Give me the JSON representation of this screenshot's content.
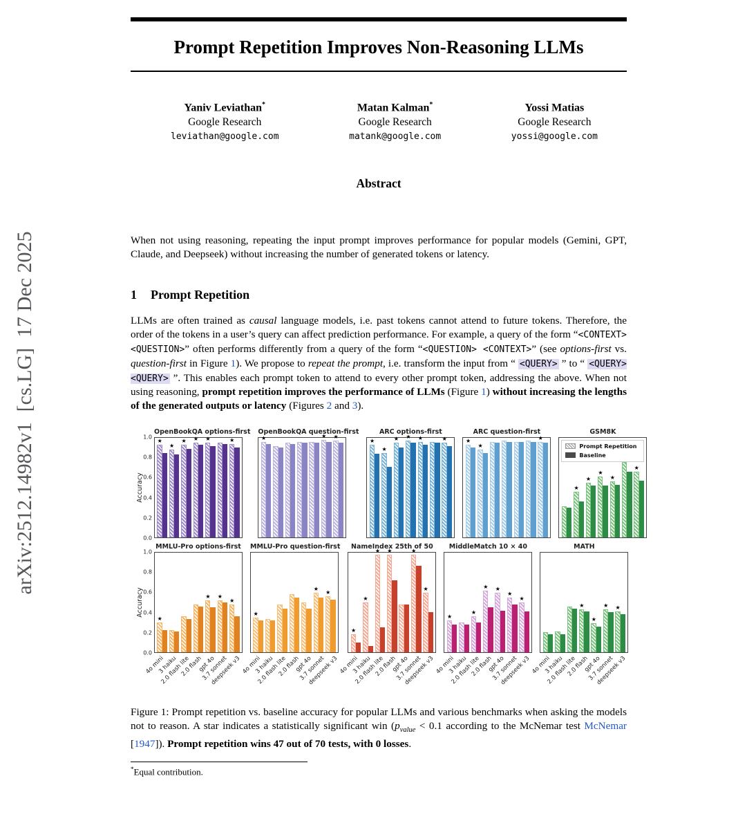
{
  "sidebar": {
    "text": "arXiv:2512.14982v1  [cs.LG]  17 Dec 2025"
  },
  "colors": {
    "link": "#2458c7",
    "code_highlight": "#dcd9f2",
    "sidebar_text": "#55565a"
  },
  "paper": {
    "title": "Prompt Repetition Improves Non-Reasoning LLMs",
    "authors": [
      {
        "name": "Yaniv Leviathan",
        "mark": "*",
        "affiliation": "Google Research",
        "email": "leviathan@google.com"
      },
      {
        "name": "Matan Kalman",
        "mark": "*",
        "affiliation": "Google Research",
        "email": "matank@google.com"
      },
      {
        "name": "Yossi Matias",
        "mark": "",
        "affiliation": "Google Research",
        "email": "yossi@google.com"
      }
    ],
    "abstract_heading": "Abstract",
    "abstract_text": "When not using reasoning, repeating the input prompt improves performance for popular models (Gemini, GPT, Claude, and Deepseek) without increasing the number of generated tokens or latency.",
    "section_number": "1",
    "section_title": "Prompt Repetition",
    "body_segments": [
      {
        "t": "LLMs are often trained as ",
        "s": "n"
      },
      {
        "t": "causal",
        "s": "i"
      },
      {
        "t": " language models, i.e. past tokens cannot attend to future tokens. Therefore, the order of the tokens in a user’s query can affect prediction performance. For example, a query of the form “",
        "s": "n"
      },
      {
        "t": "<CONTEXT> <QUESTION>",
        "s": "c"
      },
      {
        "t": "” often performs differently from a query of the form “",
        "s": "n"
      },
      {
        "t": "<QUESTION> <CONTEXT>",
        "s": "c"
      },
      {
        "t": "” (see ",
        "s": "n"
      },
      {
        "t": "options-first",
        "s": "i"
      },
      {
        "t": " vs. ",
        "s": "n"
      },
      {
        "t": "question-first",
        "s": "i"
      },
      {
        "t": " in Figure ",
        "s": "n"
      },
      {
        "t": "1",
        "s": "l"
      },
      {
        "t": "). We propose to ",
        "s": "n"
      },
      {
        "t": "repeat the prompt",
        "s": "i"
      },
      {
        "t": ", i.e. transform the input from “ ",
        "s": "n"
      },
      {
        "t": "<QUERY>",
        "s": "ch"
      },
      {
        "t": " ” to “ ",
        "s": "n"
      },
      {
        "t": "<QUERY><QUERY>",
        "s": "ch"
      },
      {
        "t": " ”. This enables each prompt token to attend to every other prompt token, addressing the above. When not using reasoning, ",
        "s": "n"
      },
      {
        "t": "prompt repetition improves the performance of LLMs",
        "s": "b"
      },
      {
        "t": " (Figure ",
        "s": "n"
      },
      {
        "t": "1",
        "s": "l"
      },
      {
        "t": ") ",
        "s": "n"
      },
      {
        "t": "without increasing the lengths of the generated outputs or latency",
        "s": "b"
      },
      {
        "t": " (Figures ",
        "s": "n"
      },
      {
        "t": "2",
        "s": "l"
      },
      {
        "t": " and ",
        "s": "n"
      },
      {
        "t": "3",
        "s": "l"
      },
      {
        "t": ").",
        "s": "n"
      }
    ],
    "caption_segments": [
      {
        "t": "Figure 1: Prompt repetition vs. baseline accuracy for popular LLMs and various benchmarks when asking the models not to reason. A star indicates a statistically significant win (",
        "s": "n"
      },
      {
        "t": "p",
        "s": "i"
      },
      {
        "t": "value",
        "s": "sub"
      },
      {
        "t": " < 0.1 according to the McNemar test ",
        "s": "n"
      },
      {
        "t": "McNemar",
        "s": "l"
      },
      {
        "t": " [",
        "s": "n"
      },
      {
        "t": "1947",
        "s": "l"
      },
      {
        "t": "]). ",
        "s": "n"
      },
      {
        "t": "Prompt repetition wins 47 out of 70 tests, with 0 losses",
        "s": "b"
      },
      {
        "t": ".",
        "s": "n"
      }
    ],
    "footnote_mark": "*",
    "footnote_text": "Equal contribution."
  },
  "chart_data": {
    "type": "bar",
    "categories": [
      "4o mini",
      "3 haiku",
      "2.0 flash lite",
      "2.0 flash",
      "gpt 4o",
      "3.7 sonnet",
      "deepseek v3"
    ],
    "series_names": [
      "Prompt Repetition",
      "Baseline"
    ],
    "ylabel": "Accuracy",
    "ylim": [
      0.0,
      1.0
    ],
    "yticks": [
      0.0,
      0.2,
      0.4,
      0.6,
      0.8,
      1.0
    ],
    "legend_entries": [
      "Prompt Repetition",
      "Baseline"
    ],
    "legend_position": "inside GSM8K subplot, top",
    "subplots": [
      {
        "title": "OpenBookQA options-first",
        "pr_color": "#a08cc8",
        "base_color": "#56328f",
        "prompt_repetition": [
          0.93,
          0.88,
          0.93,
          0.95,
          0.95,
          0.95,
          0.94
        ],
        "baseline": [
          0.85,
          0.83,
          0.89,
          0.93,
          0.92,
          0.94,
          0.9
        ],
        "stars": [
          1,
          1,
          1,
          1,
          1,
          0,
          1
        ]
      },
      {
        "title": "OpenBookQA question-first",
        "pr_color": "#bcb6de",
        "base_color": "#8b84c4",
        "prompt_repetition": [
          0.96,
          0.92,
          0.95,
          0.96,
          0.96,
          0.98,
          0.97
        ],
        "baseline": [
          0.94,
          0.9,
          0.94,
          0.95,
          0.95,
          0.96,
          0.95
        ],
        "stars": [
          1,
          0,
          0,
          0,
          0,
          1,
          1
        ]
      },
      {
        "title": "ARC options-first",
        "pr_color": "#7ab4d9",
        "base_color": "#2471b0",
        "prompt_repetition": [
          0.93,
          0.85,
          0.95,
          0.97,
          0.96,
          0.96,
          0.95
        ],
        "baseline": [
          0.84,
          0.71,
          0.9,
          0.95,
          0.93,
          0.95,
          0.92
        ],
        "stars": [
          1,
          1,
          1,
          1,
          1,
          0,
          1
        ]
      },
      {
        "title": "ARC question-first",
        "pr_color": "#a8cde6",
        "base_color": "#5e9fd0",
        "prompt_repetition": [
          0.93,
          0.88,
          0.96,
          0.97,
          0.96,
          0.97,
          0.96
        ],
        "baseline": [
          0.9,
          0.85,
          0.95,
          0.96,
          0.96,
          0.96,
          0.95
        ],
        "stars": [
          1,
          1,
          0,
          0,
          0,
          0,
          1
        ]
      },
      {
        "title": "GSM8K",
        "pr_color": "#7cc47f",
        "base_color": "#2c8c46",
        "has_legend": true,
        "prompt_repetition": [
          0.31,
          0.46,
          0.55,
          0.61,
          0.56,
          0.76,
          0.66
        ],
        "baseline": [
          0.3,
          0.36,
          0.52,
          0.52,
          0.53,
          0.66,
          0.57
        ],
        "stars": [
          0,
          1,
          1,
          1,
          1,
          1,
          1
        ]
      },
      {
        "title": "MMLU-Pro options-first",
        "pr_color": "#f7b566",
        "base_color": "#e0821f",
        "prompt_repetition": [
          0.3,
          0.22,
          0.36,
          0.48,
          0.52,
          0.52,
          0.48
        ],
        "baseline": [
          0.22,
          0.21,
          0.33,
          0.46,
          0.45,
          0.5,
          0.36
        ],
        "stars": [
          1,
          0,
          0,
          0,
          1,
          1,
          1
        ]
      },
      {
        "title": "MMLU-Pro question-first",
        "pr_color": "#f8bf79",
        "base_color": "#ef9b2d",
        "prompt_repetition": [
          0.35,
          0.33,
          0.48,
          0.58,
          0.5,
          0.6,
          0.56
        ],
        "baseline": [
          0.32,
          0.32,
          0.44,
          0.55,
          0.44,
          0.55,
          0.53
        ],
        "stars": [
          1,
          0,
          0,
          0,
          0,
          1,
          1
        ]
      },
      {
        "title": "NameIndex 25th of 50",
        "pr_color": "#f6aa95",
        "base_color": "#c6402c",
        "prompt_repetition": [
          0.18,
          0.5,
          0.98,
          0.98,
          0.48,
          0.98,
          0.6
        ],
        "baseline": [
          0.1,
          0.06,
          0.25,
          0.72,
          0.48,
          0.87,
          0.4
        ],
        "stars": [
          1,
          1,
          1,
          1,
          0,
          1,
          1
        ]
      },
      {
        "title": "MiddleMatch 10 × 40",
        "pr_color": "#d6a9dd",
        "base_color": "#bb1f70",
        "prompt_repetition": [
          0.32,
          0.3,
          0.36,
          0.62,
          0.6,
          0.55,
          0.5
        ],
        "baseline": [
          0.28,
          0.28,
          0.3,
          0.45,
          0.42,
          0.48,
          0.41
        ],
        "stars": [
          1,
          0,
          1,
          1,
          1,
          1,
          1
        ]
      },
      {
        "title": "MATH",
        "pr_color": "#7cc47f",
        "base_color": "#2c8c46",
        "prompt_repetition": [
          0.2,
          0.21,
          0.46,
          0.43,
          0.29,
          0.43,
          0.41
        ],
        "baseline": [
          0.18,
          0.18,
          0.44,
          0.41,
          0.26,
          0.4,
          0.38
        ],
        "stars": [
          0,
          0,
          0,
          1,
          1,
          1,
          1
        ]
      }
    ]
  }
}
